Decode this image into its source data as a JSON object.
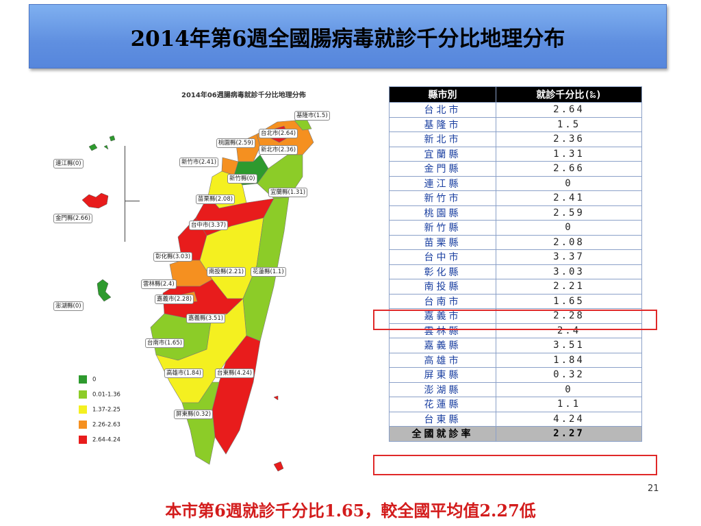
{
  "title": "2014年第6週全國腸病毒就診千分比地理分布",
  "map": {
    "title": "2014年06週腸病毒就診千分比地理分佈",
    "labels": {
      "keelung": "基隆市(1.5)",
      "taipei": "台北市(2.64)",
      "taoyuan": "桃園縣(2.59)",
      "newtaipei": "新北市(2.36)",
      "hsinchu_city": "新竹市(2.41)",
      "hsinchu_county": "新竹縣(0)",
      "yilan": "宜蘭縣(1.31)",
      "miaoli": "苗栗縣(2.08)",
      "taichung": "台中市(3.37)",
      "changhua": "彰化縣(3.03)",
      "nantou": "南投縣(2.21)",
      "hualien": "花蓮縣(1.1)",
      "yunlin": "雲林縣(2.4)",
      "chiayi_city": "嘉義市(2.28)",
      "chiayi_county": "嘉義縣(3.51)",
      "tainan": "台南市(1.65)",
      "kaohsiung": "高雄市(1.84)",
      "taitung": "台東縣(4.24)",
      "pingtung": "屏東縣(0.32)",
      "lienchiang": "連江縣(0)",
      "kinmen": "金門縣(2.66)",
      "penghu": "澎湖縣(0)"
    },
    "legend": [
      {
        "label": "0",
        "color": "#2e9a2e"
      },
      {
        "label": "0.01-1.36",
        "color": "#8ccc28"
      },
      {
        "label": "1.37-2.25",
        "color": "#f4f020"
      },
      {
        "label": "2.26-2.63",
        "color": "#f59020"
      },
      {
        "label": "2.64-4.24",
        "color": "#e81c1c"
      }
    ]
  },
  "table": {
    "headers": [
      "縣市別",
      "就診千分比(‰)"
    ],
    "rows": [
      [
        "台北市",
        "2.64"
      ],
      [
        "基隆市",
        "1.5"
      ],
      [
        "新北市",
        "2.36"
      ],
      [
        "宜蘭縣",
        "1.31"
      ],
      [
        "金門縣",
        "2.66"
      ],
      [
        "連江縣",
        "0"
      ],
      [
        "新竹市",
        "2.41"
      ],
      [
        "桃園縣",
        "2.59"
      ],
      [
        "新竹縣",
        "0"
      ],
      [
        "苗栗縣",
        "2.08"
      ],
      [
        "台中市",
        "3.37"
      ],
      [
        "彰化縣",
        "3.03"
      ],
      [
        "南投縣",
        "2.21"
      ],
      [
        "台南市",
        "1.65"
      ],
      [
        "嘉義市",
        "2.28"
      ],
      [
        "雲林縣",
        "2.4"
      ],
      [
        "嘉義縣",
        "3.51"
      ],
      [
        "高雄市",
        "1.84"
      ],
      [
        "屏東縣",
        "0.32"
      ],
      [
        "澎湖縣",
        "0"
      ],
      [
        "花蓮縣",
        "1.1"
      ],
      [
        "台東縣",
        "4.24"
      ]
    ],
    "total": [
      "全國就診率",
      "2.27"
    ]
  },
  "page_number": "21",
  "footer": "本市第6週就診千分比1.65，較全國平均值2.27低"
}
